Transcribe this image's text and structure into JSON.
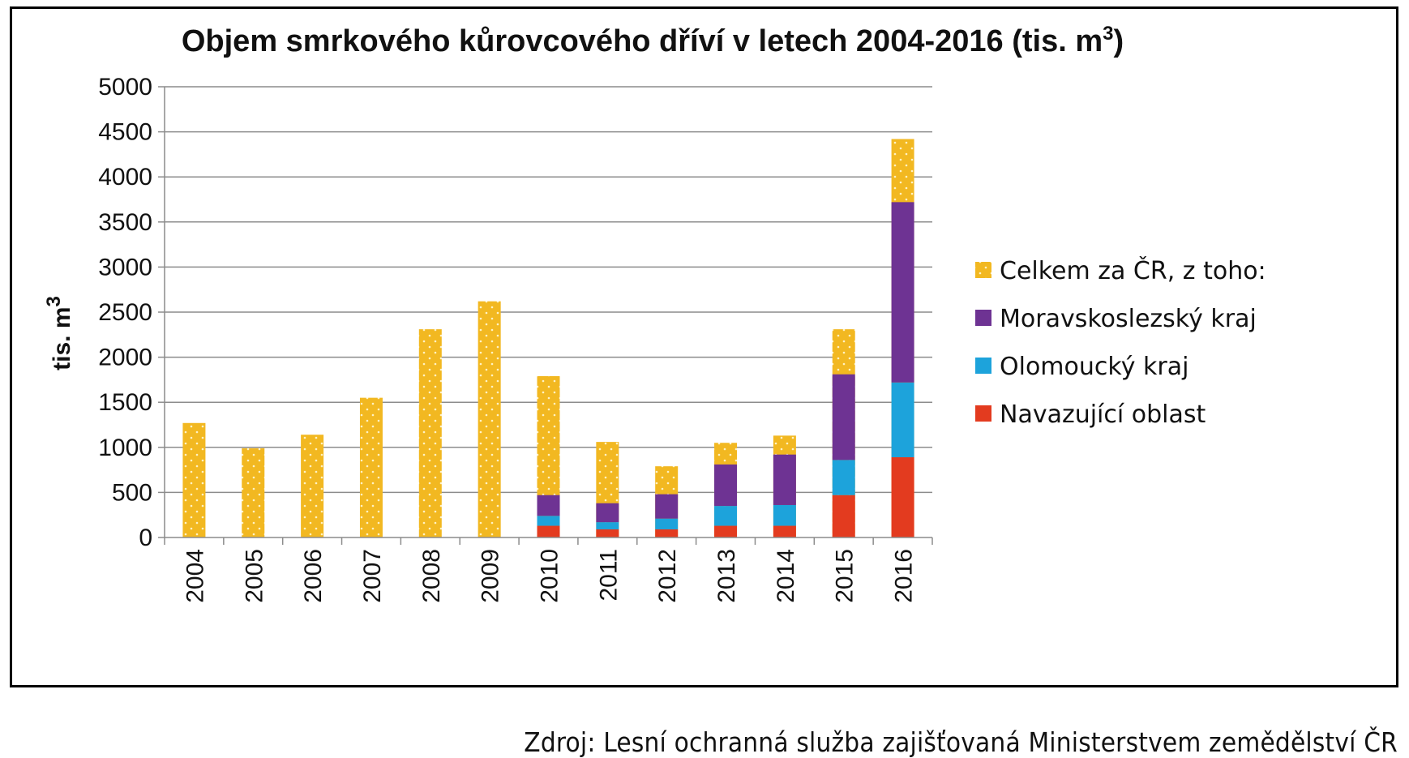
{
  "chart_data": {
    "type": "bar",
    "stacked": true,
    "title": "Objem smrkového kůrovcového dříví v letech 2004-2016 (tis. m",
    "title_superscript": "3",
    "title_suffix": ")",
    "ylabel": "tis. m",
    "ylabel_superscript": "3",
    "xlabel": "",
    "ylim": [
      0,
      5000
    ],
    "yticks": [
      0,
      500,
      1000,
      1500,
      2000,
      2500,
      3000,
      3500,
      4000,
      4500,
      5000
    ],
    "grid": true,
    "legend_position": "right",
    "categories": [
      "2004",
      "2005",
      "2006",
      "2007",
      "2008",
      "2009",
      "2010",
      "2011",
      "2012",
      "2013",
      "2014",
      "2015",
      "2016"
    ],
    "total": {
      "name": "Celkem za ČR, z toho:",
      "color": "#F2B821",
      "values": [
        1270,
        990,
        1140,
        1550,
        2310,
        2620,
        1790,
        1060,
        790,
        1050,
        1130,
        2310,
        4420
      ]
    },
    "series": [
      {
        "name": "Navazující oblast",
        "color": "#E33B1F",
        "values": [
          null,
          null,
          null,
          null,
          null,
          null,
          130,
          90,
          90,
          130,
          130,
          470,
          890
        ]
      },
      {
        "name": "Olomoucký kraj",
        "color": "#1DA3DB",
        "values": [
          null,
          null,
          null,
          null,
          null,
          null,
          110,
          80,
          120,
          220,
          230,
          390,
          830
        ]
      },
      {
        "name": "Moravskoslezský kraj",
        "color": "#6E3393",
        "values": [
          null,
          null,
          null,
          null,
          null,
          null,
          230,
          210,
          270,
          460,
          560,
          950,
          2000
        ]
      }
    ],
    "legend_order": [
      "Celkem za ČR, z toho:",
      "Moravskoslezský kraj",
      "Olomoucký kraj",
      "Navazující oblast"
    ]
  },
  "source": "Zdroj: Lesní ochranná služba zajišťovaná Ministerstvem zemědělství ČR"
}
